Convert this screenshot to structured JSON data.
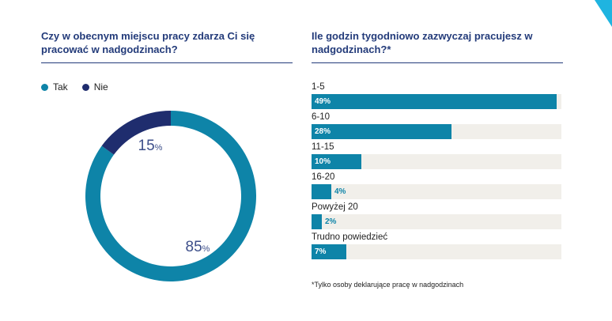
{
  "colors": {
    "tak": "#0e84a8",
    "nie": "#1f2d6e",
    "accent": "#1fb4e0",
    "track": "#f1efea"
  },
  "chart_data": [
    {
      "type": "pie",
      "title": "Czy w obecnym miejscu pracy zdarza Ci się pracować w nadgodzinach?",
      "legend": [
        {
          "name": "Tak",
          "color": "#0e84a8"
        },
        {
          "name": "Nie",
          "color": "#1f2d6e"
        }
      ],
      "slices": [
        {
          "name": "Tak",
          "value": 85,
          "label": "85",
          "unit": "%"
        },
        {
          "name": "Nie",
          "value": 15,
          "label": "15",
          "unit": "%"
        }
      ]
    },
    {
      "type": "bar",
      "orientation": "horizontal",
      "title": "Ile godzin tygodniowo zazwyczaj pracujesz w nadgodzinach?*",
      "xlim": [
        0,
        50
      ],
      "bars": [
        {
          "category": "1-5",
          "value": 49,
          "label": "49%"
        },
        {
          "category": "6-10",
          "value": 28,
          "label": "28%"
        },
        {
          "category": "11-15",
          "value": 10,
          "label": "10%"
        },
        {
          "category": "16-20",
          "value": 4,
          "label": "4%"
        },
        {
          "category": "Powyżej 20",
          "value": 2,
          "label": "2%"
        },
        {
          "category": "Trudno powiedzieć",
          "value": 7,
          "label": "7%"
        }
      ],
      "footnote": "*Tylko osoby deklarujące pracę w nadgodzinach"
    }
  ]
}
